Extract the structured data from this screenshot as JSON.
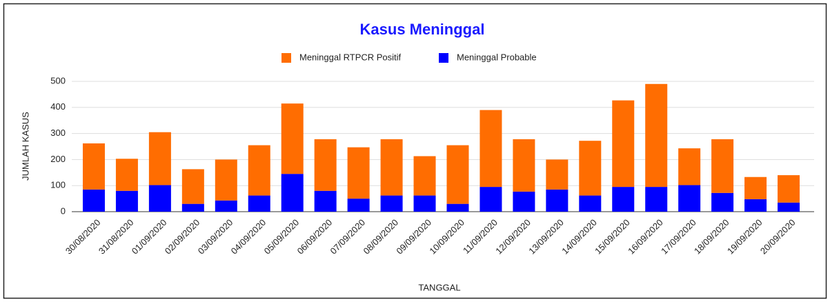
{
  "chart_data": {
    "type": "stacked_bar",
    "title": "Kasus Meninggal",
    "x_label": "TANGGAL",
    "y_label": "JUMLAH KASUS",
    "categories": [
      "30/08/2020",
      "31/08/2020",
      "01/09/2020",
      "02/09/2020",
      "03/09/2020",
      "04/09/2020",
      "05/09/2020",
      "06/09/2020",
      "07/09/2020",
      "08/09/2020",
      "09/09/2020",
      "10/09/2020",
      "11/09/2020",
      "12/09/2020",
      "13/09/2020",
      "14/09/2020",
      "15/09/2020",
      "16/09/2020",
      "17/09/2020",
      "18/09/2020",
      "19/09/2020",
      "20/09/2020"
    ],
    "series": [
      {
        "name": "Meninggal RTPCR Positif",
        "color": "#ff6d01",
        "values": [
          177,
          123,
          203,
          133,
          157,
          193,
          270,
          198,
          197,
          216,
          151,
          225,
          295,
          201,
          115,
          210,
          332,
          395,
          141,
          206,
          85,
          105
        ]
      },
      {
        "name": "Meninggal Probable",
        "color": "#0000ff",
        "values": [
          85,
          80,
          102,
          30,
          43,
          62,
          145,
          80,
          50,
          62,
          62,
          30,
          95,
          77,
          85,
          62,
          95,
          95,
          102,
          72,
          48,
          35
        ]
      }
    ],
    "ylim": [
      0,
      500
    ],
    "yticks": [
      0,
      100,
      200,
      300,
      400,
      500
    ],
    "grid": true,
    "legend": "top"
  }
}
